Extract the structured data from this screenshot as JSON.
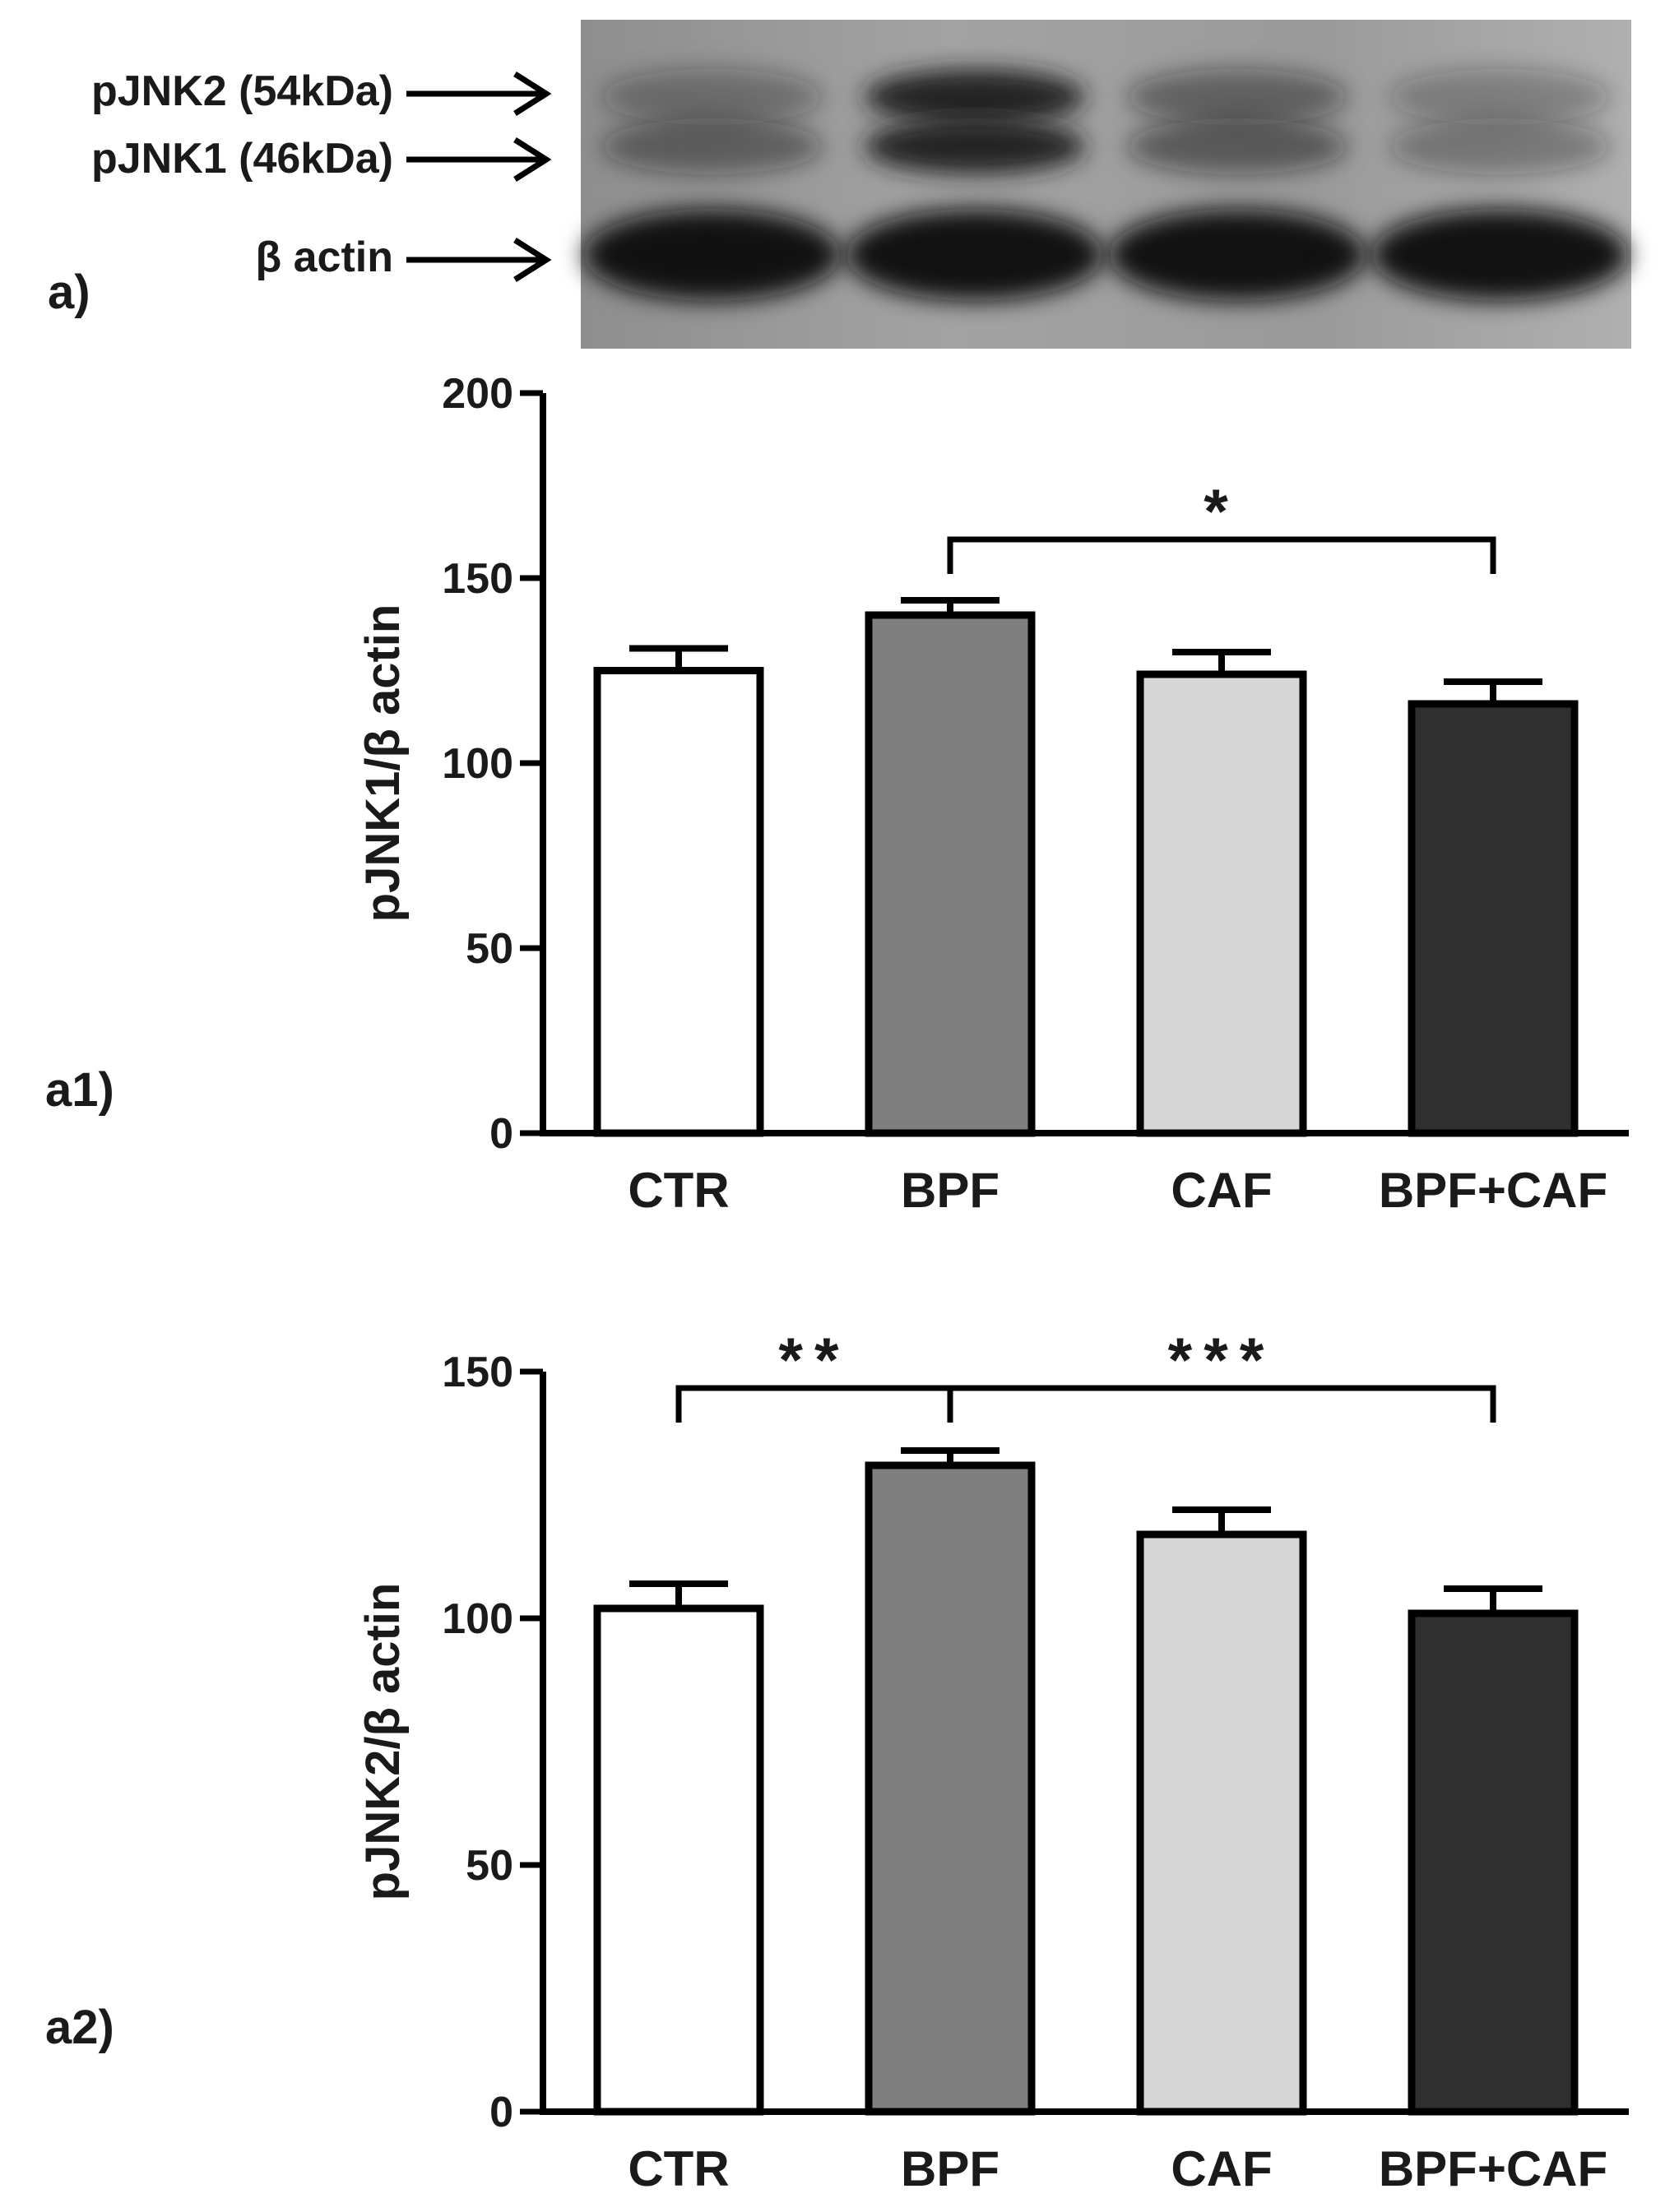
{
  "panels": {
    "blot": {
      "label": "a)",
      "band_labels": [
        "pJNK2 (54kDa)",
        "pJNK1 (46kDa)",
        "β actin"
      ],
      "lanes": 4
    },
    "a1": {
      "label": "a1)"
    },
    "a2": {
      "label": "a2)"
    }
  },
  "chart_data": [
    {
      "type": "bar",
      "panel": "a1)",
      "categories": [
        "CTR",
        "BPF",
        "CAF",
        "BPF+CAF"
      ],
      "values": [
        125,
        140,
        124,
        116
      ],
      "errors": [
        6,
        4,
        6,
        6
      ],
      "fill_colors": [
        "#ffffff",
        "#7f7f7f",
        "#d6d6d6",
        "#2f2f2f"
      ],
      "ylabel": "pJNK1/β actin",
      "xlabel": "",
      "ylim": [
        0,
        200
      ],
      "yticks": [
        0,
        50,
        100,
        150,
        200
      ],
      "significance": [
        {
          "from": "BPF",
          "to": "BPF+CAF",
          "label": "*"
        }
      ],
      "grid": false
    },
    {
      "type": "bar",
      "panel": "a2)",
      "categories": [
        "CTR",
        "BPF",
        "CAF",
        "BPF+CAF"
      ],
      "values": [
        102,
        131,
        117,
        101
      ],
      "errors": [
        5,
        3,
        5,
        5
      ],
      "fill_colors": [
        "#ffffff",
        "#7f7f7f",
        "#d6d6d6",
        "#2f2f2f"
      ],
      "ylabel": "pJNK2/β actin",
      "xlabel": "",
      "ylim": [
        0,
        150
      ],
      "yticks": [
        0,
        50,
        100,
        150
      ],
      "significance": [
        {
          "from": "CTR",
          "to": "BPF",
          "label": "**"
        },
        {
          "from": "BPF",
          "to": "BPF+CAF",
          "label": "***"
        }
      ],
      "grid": false
    }
  ]
}
